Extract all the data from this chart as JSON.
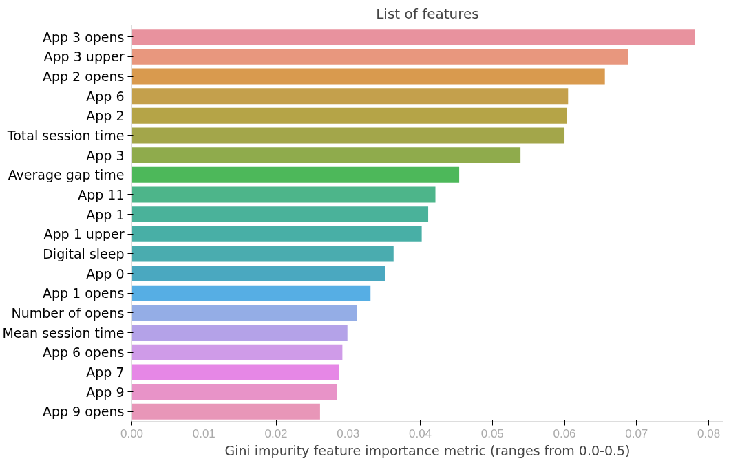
{
  "chart_data": {
    "type": "bar",
    "orientation": "horizontal",
    "title": "List of features",
    "xlabel": "Gini impurity feature importance metric (ranges from 0.0-0.5)",
    "categories": [
      "App 3 opens",
      "App 3 upper",
      "App 2 opens",
      "App 6",
      "App 2",
      "Total session time",
      "App 3",
      "Average gap time",
      "App 11",
      "App 1",
      "App 1 upper",
      "Digital sleep",
      "App 0",
      "App 1 opens",
      "Number of opens",
      "Mean session time",
      "App 6 opens",
      "App 7",
      "App 9",
      "App 9 opens"
    ],
    "values": [
      0.0781,
      0.0688,
      0.0656,
      0.0605,
      0.0603,
      0.06,
      0.0539,
      0.0454,
      0.0421,
      0.0411,
      0.0402,
      0.0363,
      0.0351,
      0.0331,
      0.0312,
      0.0299,
      0.0292,
      0.0287,
      0.0284,
      0.0261
    ],
    "colors": [
      "#e8929e",
      "#e8977e",
      "#d99a4e",
      "#c4a04c",
      "#b5a447",
      "#a3a64a",
      "#8fab4c",
      "#4db85a",
      "#4db58a",
      "#4ab29a",
      "#48afa6",
      "#4aacaf",
      "#4aa8c0",
      "#56aee4",
      "#94ade6",
      "#b4a2e8",
      "#cf9be8",
      "#e687e6",
      "#e893c8",
      "#e896b8"
    ],
    "xlim": [
      0,
      0.082
    ],
    "xticks": [
      {
        "value": 0,
        "label": "0.00"
      },
      {
        "value": 0.01,
        "label": "0.01"
      },
      {
        "value": 0.02,
        "label": "0.02"
      },
      {
        "value": 0.03,
        "label": "0.03"
      },
      {
        "value": 0.04,
        "label": "0.04"
      },
      {
        "value": 0.05,
        "label": "0.05"
      },
      {
        "value": 0.06,
        "label": "0.06"
      },
      {
        "value": 0.07,
        "label": "0.07"
      },
      {
        "value": 0.08,
        "label": "0.08"
      }
    ],
    "grid": false
  }
}
